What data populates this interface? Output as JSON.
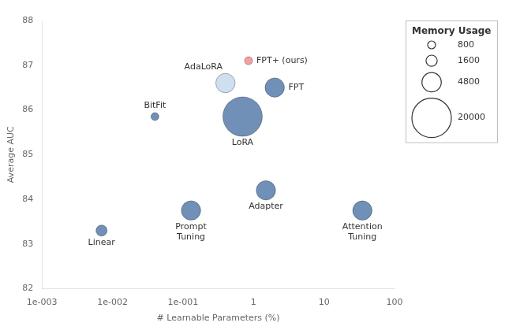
{
  "chart_data": {
    "type": "bubble",
    "x_label": "# Learnable Parameters (%)",
    "y_label": "Average AUC",
    "labels": [
      "Linear",
      "Prompt\nTuning",
      "BitFit",
      "AdaLoRA",
      "LoRA",
      "FPT",
      "Adapter",
      "Attention\nTuning",
      "FPT+ (ours)"
    ],
    "x": [
      0.007,
      0.13,
      0.04,
      0.4,
      0.7,
      2.0,
      1.5,
      35.0,
      0.85
    ],
    "values": [
      83.3,
      83.75,
      85.85,
      86.6,
      85.85,
      86.5,
      84.2,
      83.75,
      87.1
    ],
    "sizes": [
      1600,
      4800,
      800,
      4800,
      20000,
      4800,
      4800,
      4800,
      800
    ],
    "colors": [
      "#7090b8",
      "#7090b8",
      "#7090b8",
      "#d0dff0",
      "#7090b8",
      "#7090b8",
      "#7090b8",
      "#7090b8",
      "#f5a0a0"
    ],
    "log": "x",
    "xlim": [
      0.001,
      100
    ],
    "ylim": [
      82,
      88
    ],
    "xticks": [
      {
        "value": 0.001,
        "label": "1e-003"
      },
      {
        "value": 0.01,
        "label": "1e-002"
      },
      {
        "value": 0.1,
        "label": "1e-001"
      },
      1,
      10,
      100
    ],
    "yticks": [
      82,
      83,
      84,
      85,
      86,
      87,
      88
    ],
    "grid": false,
    "legend": "upper right",
    "legend_title": "Memory Usage",
    "legend_sizes": [
      800,
      1600,
      4800,
      20000
    ]
  }
}
